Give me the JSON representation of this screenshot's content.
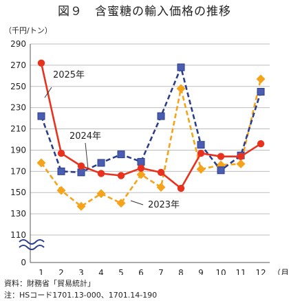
{
  "chart_data": {
    "type": "line",
    "title": "図９　含蜜糖の輸入価格の推移",
    "unit_label": "（千円/トン）",
    "x_unit": "（月）",
    "categories": [
      "1",
      "2",
      "3",
      "4",
      "5",
      "6",
      "7",
      "8",
      "9",
      "10",
      "11",
      "12"
    ],
    "y_ticks": [
      "290",
      "270",
      "250",
      "230",
      "210",
      "190",
      "170",
      "150",
      "130",
      "110",
      "0"
    ],
    "ylim": [
      110,
      290
    ],
    "axis_break": true,
    "grid": true,
    "series": [
      {
        "name": "2025年",
        "color": "#e8321e",
        "marker": "circle",
        "dash": false,
        "values": [
          272,
          187,
          175,
          168,
          166,
          173,
          169,
          154,
          187,
          184,
          184,
          196
        ]
      },
      {
        "name": "2024年",
        "color": "#2b3e8c",
        "marker": "square",
        "dash": true,
        "values": [
          222,
          170,
          169,
          178,
          186,
          179,
          222,
          268,
          195,
          171,
          185,
          245
        ]
      },
      {
        "name": "2023年",
        "color": "#f5a31a",
        "marker": "diamond",
        "dash": true,
        "values": [
          178,
          152,
          137,
          149,
          140,
          167,
          155,
          248,
          172,
          176,
          177,
          257
        ]
      }
    ]
  },
  "source": "資料：財務省「貿易統計」",
  "note": "注：HSコード1701.13-000、1701.14-190"
}
